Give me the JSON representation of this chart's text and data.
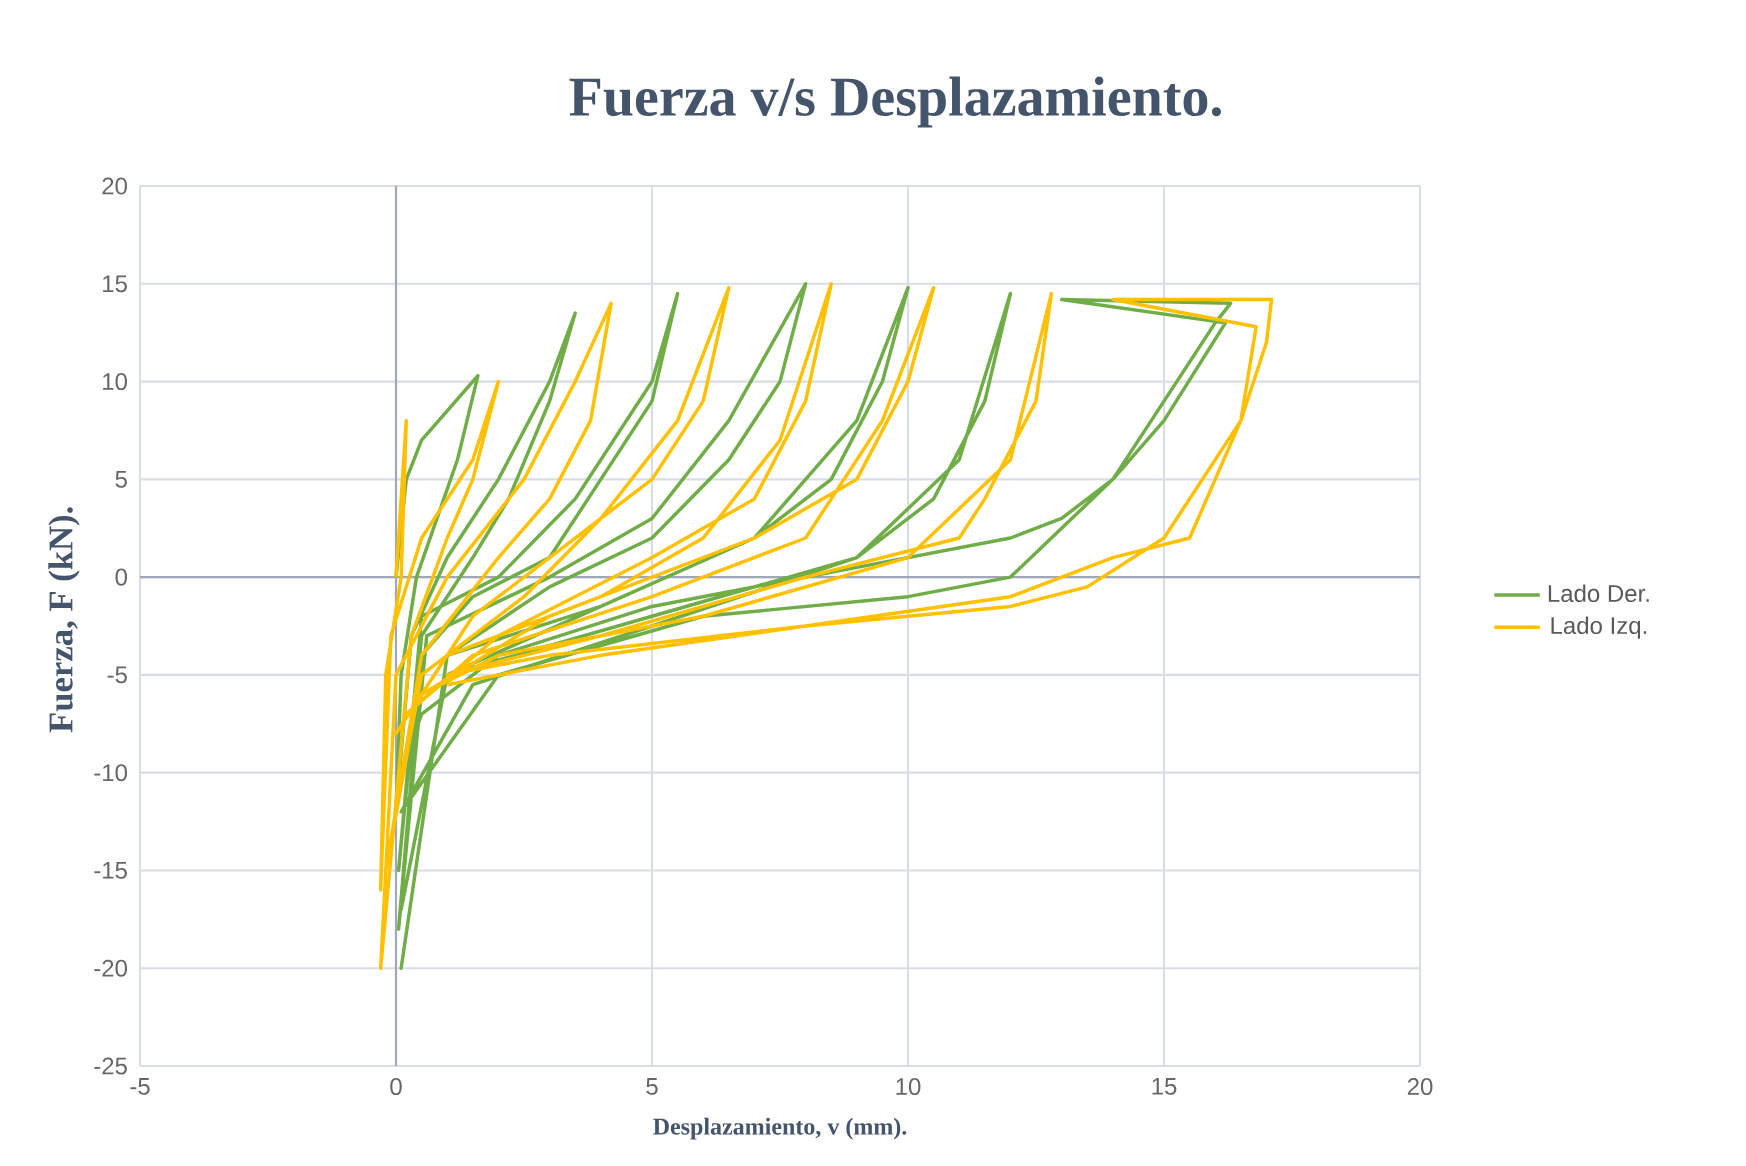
{
  "chart_data": {
    "type": "line",
    "title": "Fuerza v/s Desplazamiento.",
    "xlabel": "Desplazamiento, v (mm).",
    "ylabel": "Fuerza, F (kN).",
    "xlim": [
      -5,
      20
    ],
    "ylim": [
      -25,
      20
    ],
    "xticks": [
      -5,
      0,
      5,
      10,
      15,
      20
    ],
    "yticks": [
      -25,
      -20,
      -15,
      -10,
      -5,
      0,
      5,
      10,
      15,
      20
    ],
    "grid": true,
    "legend": "right",
    "series": [
      {
        "name": "Lado Der.",
        "color": "#70ad47",
        "x": [
          0,
          0.2,
          0.5,
          1,
          1.6,
          1.2,
          0.8,
          0.4,
          0.1,
          0,
          0.3,
          1,
          2,
          3,
          3.5,
          3,
          2.2,
          1.5,
          0.5,
          0.05,
          0.5,
          2,
          3.5,
          5,
          5.5,
          5,
          4,
          3,
          1.5,
          0.5,
          0.05,
          0.6,
          3,
          5,
          6.5,
          8,
          7.5,
          6.5,
          5,
          3,
          1,
          0.1,
          1,
          4,
          7,
          9,
          10,
          9.5,
          8.5,
          7,
          4,
          1,
          0.1,
          1,
          5,
          9,
          11,
          12,
          11.5,
          10.5,
          9,
          5,
          1.5,
          0.1,
          2,
          6,
          10,
          12,
          14,
          16,
          16.3,
          13,
          16.2,
          15,
          14,
          13,
          12,
          9,
          5,
          2,
          0.5,
          0.1
        ],
        "values": [
          0,
          5,
          7,
          8.5,
          10.3,
          6,
          3,
          0,
          -5,
          -12,
          -3,
          1,
          5,
          10,
          13.5,
          9,
          4,
          1,
          -3,
          -15,
          -2,
          0,
          4,
          10,
          14.5,
          9,
          5,
          1,
          -1,
          -4,
          -18,
          -3,
          0,
          3,
          8,
          15,
          10,
          6,
          2,
          -0.5,
          -4,
          -20,
          -4,
          -1.5,
          2,
          8,
          14.8,
          10,
          5,
          2,
          -1.5,
          -5,
          -17,
          -5,
          -2,
          1,
          6,
          14.5,
          9,
          4,
          1,
          -2.5,
          -5.5,
          -12,
          -5,
          -2,
          -1,
          0,
          5,
          13,
          14,
          14.2,
          13,
          8,
          5,
          3,
          2,
          0.5,
          -1.5,
          -4,
          -7,
          -10
        ]
      },
      {
        "name": "Lado Izq.",
        "color": "#ffc000",
        "x": [
          0,
          0.2,
          0.1,
          -0.2,
          -0.3,
          -0.1,
          0.5,
          1.5,
          2,
          1.5,
          1,
          0.3,
          -0.3,
          0,
          1,
          2.5,
          3.5,
          4.2,
          3.8,
          3,
          2,
          0.5,
          -0.2,
          0.5,
          2.5,
          4,
          5.5,
          6.5,
          6,
          5,
          3.5,
          1.5,
          0,
          1,
          4,
          6,
          7.5,
          8.5,
          8,
          7,
          5,
          2,
          0.2,
          1.5,
          5,
          8,
          9.5,
          10.5,
          10,
          9,
          7,
          3,
          0.5,
          2,
          6,
          10,
          12,
          12.8,
          12.5,
          11.5,
          11,
          8,
          4,
          1,
          3,
          8,
          12,
          14,
          15.5,
          16.5,
          17,
          17.1,
          14,
          16.8,
          16.5,
          15,
          13.5,
          12,
          8,
          4,
          1
        ],
        "values": [
          0,
          8,
          0,
          -5,
          -16,
          -3,
          2,
          6,
          10,
          5,
          2,
          -3,
          -20,
          -5,
          0,
          5,
          10,
          14,
          8,
          4,
          1,
          -4,
          -15,
          -5,
          -1,
          3,
          8,
          14.8,
          9,
          5,
          2,
          -2,
          -8,
          -4,
          -1,
          2,
          7,
          15,
          9,
          4,
          1,
          -3,
          -7,
          -4,
          -1,
          2,
          8,
          14.8,
          10,
          5,
          2,
          -2,
          -6,
          -4,
          -2,
          1,
          6,
          14.5,
          9,
          4,
          2,
          0,
          -3,
          -5,
          -4,
          -2.5,
          -1,
          1,
          2,
          8,
          12,
          14.2,
          14.2,
          12.8,
          8,
          2,
          -0.5,
          -1.5,
          -2.5,
          -4,
          -5.5
        ]
      }
    ]
  }
}
